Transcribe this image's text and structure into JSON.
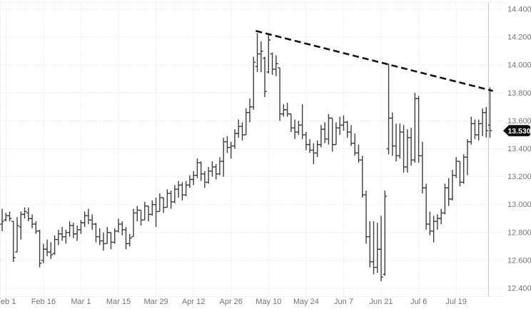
{
  "chart": {
    "last_price_label": "13.530",
    "y_axis_labels": [
      "14.400",
      "14.200",
      "14.000",
      "13.800",
      "13.600",
      "13.400",
      "13.200",
      "13.000",
      "12.800",
      "12.600",
      "12.400"
    ],
    "x_axis_labels": [
      "Feb 1",
      "Feb 16",
      "Mar 1",
      "Mar 15",
      "Mar 29",
      "Apr 12",
      "Apr 26",
      "May 10",
      "May 24",
      "Jun 7",
      "Jun 21",
      "Jul 6",
      "Jul 19"
    ]
  },
  "chart_data": {
    "type": "ohlc",
    "title": "",
    "xlabel": "",
    "ylabel": "",
    "ylim": [
      12.4,
      14.4
    ],
    "y_tick_step": 0.2,
    "grid": true,
    "legend": "none",
    "x_tick_labels": [
      "Feb 1",
      "Feb 16",
      "Mar 1",
      "Mar 15",
      "Mar 29",
      "Apr 12",
      "Apr 26",
      "May 10",
      "May 24",
      "Jun 7",
      "Jun 21",
      "Jul 6",
      "Jul 19"
    ],
    "x_tick_bar_indices": [
      1,
      11,
      21,
      31,
      41,
      51,
      61,
      71,
      81,
      91,
      101,
      111,
      121
    ],
    "last_price": 13.53,
    "bars_format": [
      "open",
      "high",
      "low",
      "close"
    ],
    "bars": [
      [
        12.86,
        12.97,
        12.81,
        12.88
      ],
      [
        12.89,
        12.94,
        12.88,
        12.92
      ],
      [
        12.92,
        12.95,
        12.88,
        12.9
      ],
      [
        12.88,
        12.88,
        12.59,
        12.62
      ],
      [
        12.66,
        12.91,
        12.66,
        12.85
      ],
      [
        12.84,
        12.95,
        12.75,
        12.93
      ],
      [
        12.93,
        12.98,
        12.9,
        12.95
      ],
      [
        12.94,
        12.98,
        12.88,
        12.9
      ],
      [
        12.9,
        12.93,
        12.83,
        12.86
      ],
      [
        12.86,
        12.88,
        12.79,
        12.81
      ],
      [
        12.81,
        12.82,
        12.55,
        12.58
      ],
      [
        12.6,
        12.72,
        12.58,
        12.68
      ],
      [
        12.68,
        12.75,
        12.63,
        12.66
      ],
      [
        12.66,
        12.73,
        12.61,
        12.64
      ],
      [
        12.65,
        12.78,
        12.64,
        12.75
      ],
      [
        12.75,
        12.82,
        12.71,
        12.79
      ],
      [
        12.79,
        12.84,
        12.74,
        12.77
      ],
      [
        12.77,
        12.82,
        12.72,
        12.8
      ],
      [
        12.8,
        12.88,
        12.77,
        12.85
      ],
      [
        12.85,
        12.87,
        12.76,
        12.79
      ],
      [
        12.79,
        12.85,
        12.74,
        12.82
      ],
      [
        12.82,
        12.89,
        12.79,
        12.87
      ],
      [
        12.87,
        12.95,
        12.84,
        12.92
      ],
      [
        12.92,
        12.97,
        12.86,
        12.89
      ],
      [
        12.89,
        12.93,
        12.82,
        12.86
      ],
      [
        12.86,
        12.87,
        12.73,
        12.77
      ],
      [
        12.77,
        12.83,
        12.71,
        12.74
      ],
      [
        12.74,
        12.8,
        12.67,
        12.72
      ],
      [
        12.72,
        12.84,
        12.72,
        12.8
      ],
      [
        12.8,
        12.8,
        12.68,
        12.73
      ],
      [
        12.73,
        12.83,
        12.72,
        12.81
      ],
      [
        12.81,
        12.9,
        12.8,
        12.86
      ],
      [
        12.86,
        12.88,
        12.78,
        12.82
      ],
      [
        12.82,
        12.84,
        12.68,
        12.72
      ],
      [
        12.72,
        12.79,
        12.7,
        12.76
      ],
      [
        12.77,
        12.97,
        12.77,
        12.94
      ],
      [
        12.94,
        12.99,
        12.88,
        12.96
      ],
      [
        12.96,
        12.96,
        12.85,
        12.89
      ],
      [
        12.89,
        13.02,
        12.89,
        12.99
      ],
      [
        12.99,
        12.99,
        12.88,
        12.93
      ],
      [
        12.93,
        13.03,
        12.92,
        13.0
      ],
      [
        13.0,
        13.05,
        12.84,
        12.95
      ],
      [
        12.95,
        13.08,
        12.95,
        13.05
      ],
      [
        13.05,
        13.05,
        12.94,
        12.98
      ],
      [
        12.98,
        13.11,
        12.98,
        13.08
      ],
      [
        13.08,
        13.1,
        12.97,
        13.02
      ],
      [
        13.02,
        13.14,
        13.01,
        13.11
      ],
      [
        13.11,
        13.17,
        13.05,
        13.14
      ],
      [
        13.14,
        13.16,
        13.03,
        13.07
      ],
      [
        13.07,
        13.17,
        13.06,
        13.14
      ],
      [
        13.14,
        13.21,
        13.12,
        13.18
      ],
      [
        13.18,
        13.24,
        13.14,
        13.21
      ],
      [
        13.21,
        13.33,
        13.19,
        13.3
      ],
      [
        13.3,
        13.31,
        13.17,
        13.22
      ],
      [
        13.22,
        13.24,
        13.12,
        13.16
      ],
      [
        13.16,
        13.27,
        13.15,
        13.24
      ],
      [
        13.24,
        13.31,
        13.2,
        13.27
      ],
      [
        13.27,
        13.29,
        13.18,
        13.22
      ],
      [
        13.22,
        13.34,
        13.21,
        13.31
      ],
      [
        13.31,
        13.48,
        13.2,
        13.45
      ],
      [
        13.45,
        13.49,
        13.37,
        13.41
      ],
      [
        13.41,
        13.45,
        13.33,
        13.42
      ],
      [
        13.42,
        13.54,
        13.4,
        13.51
      ],
      [
        13.51,
        13.61,
        13.48,
        13.56
      ],
      [
        13.56,
        13.59,
        13.46,
        13.5
      ],
      [
        13.5,
        13.69,
        13.5,
        13.66
      ],
      [
        13.66,
        13.76,
        13.59,
        13.7
      ],
      [
        13.7,
        14.06,
        13.68,
        14.02
      ],
      [
        13.99,
        14.23,
        13.95,
        14.08
      ],
      [
        14.08,
        14.17,
        13.95,
        14.1
      ],
      [
        14.05,
        14.06,
        13.77,
        13.81
      ],
      [
        13.95,
        14.22,
        13.94,
        14.18
      ],
      [
        14.08,
        14.09,
        13.93,
        13.97
      ],
      [
        13.97,
        14.07,
        13.92,
        14.01
      ],
      [
        13.98,
        13.98,
        13.6,
        13.65
      ],
      [
        13.65,
        13.72,
        13.63,
        13.68
      ],
      [
        13.68,
        13.73,
        13.63,
        13.65
      ],
      [
        13.65,
        13.65,
        13.52,
        13.55
      ],
      [
        13.55,
        13.61,
        13.47,
        13.52
      ],
      [
        13.52,
        13.6,
        13.5,
        13.57
      ],
      [
        13.57,
        13.72,
        13.47,
        13.5
      ],
      [
        13.5,
        13.52,
        13.39,
        13.43
      ],
      [
        13.43,
        13.47,
        13.37,
        13.39
      ],
      [
        13.39,
        13.44,
        13.29,
        13.37
      ],
      [
        13.37,
        13.46,
        13.34,
        13.43
      ],
      [
        13.43,
        13.57,
        13.41,
        13.54
      ],
      [
        13.54,
        13.59,
        13.44,
        13.47
      ],
      [
        13.47,
        13.65,
        13.43,
        13.62
      ],
      [
        13.62,
        13.62,
        13.38,
        13.43
      ],
      [
        13.43,
        13.59,
        13.43,
        13.55
      ],
      [
        13.55,
        13.63,
        13.5,
        13.57
      ],
      [
        13.57,
        13.64,
        13.53,
        13.59
      ],
      [
        13.59,
        13.6,
        13.48,
        13.52
      ],
      [
        13.52,
        13.57,
        13.42,
        13.44
      ],
      [
        13.44,
        13.51,
        13.35,
        13.37
      ],
      [
        13.37,
        13.43,
        13.3,
        13.32
      ],
      [
        13.32,
        13.35,
        13.05,
        13.07
      ],
      [
        13.07,
        13.1,
        12.72,
        12.77
      ],
      [
        12.77,
        12.88,
        12.55,
        12.59
      ],
      [
        12.59,
        12.88,
        12.5,
        12.55
      ],
      [
        12.55,
        12.87,
        12.51,
        12.68
      ],
      [
        12.68,
        12.92,
        12.45,
        12.48
      ],
      [
        12.5,
        13.1,
        12.49,
        13.06
      ],
      [
        13.4,
        14.01,
        13.36,
        13.62
      ],
      [
        13.62,
        13.66,
        13.35,
        13.42
      ],
      [
        13.42,
        13.58,
        13.31,
        13.35
      ],
      [
        13.35,
        13.58,
        13.33,
        13.52
      ],
      [
        13.52,
        13.57,
        13.23,
        13.27
      ],
      [
        13.27,
        13.54,
        13.23,
        13.48
      ],
      [
        13.48,
        13.55,
        13.28,
        13.32
      ],
      [
        13.32,
        13.8,
        13.3,
        13.76
      ],
      [
        13.76,
        13.78,
        13.3,
        13.35
      ],
      [
        13.35,
        13.45,
        13.08,
        13.12
      ],
      [
        13.12,
        13.15,
        12.82,
        12.86
      ],
      [
        12.86,
        12.95,
        12.78,
        12.81
      ],
      [
        12.81,
        12.92,
        12.73,
        12.88
      ],
      [
        12.88,
        12.93,
        12.82,
        12.9
      ],
      [
        12.9,
        12.97,
        12.86,
        12.94
      ],
      [
        12.94,
        13.15,
        12.93,
        13.12
      ],
      [
        13.12,
        13.19,
        12.99,
        13.04
      ],
      [
        13.04,
        13.25,
        13.03,
        13.21
      ],
      [
        13.21,
        13.34,
        13.19,
        13.31
      ],
      [
        13.31,
        13.31,
        13.13,
        13.16
      ],
      [
        13.16,
        13.36,
        13.15,
        13.34
      ],
      [
        13.34,
        13.47,
        13.21,
        13.45
      ],
      [
        13.45,
        13.63,
        13.43,
        13.58
      ],
      [
        13.58,
        13.61,
        13.47,
        13.5
      ],
      [
        13.5,
        13.61,
        13.46,
        13.58
      ],
      [
        13.58,
        13.69,
        13.49,
        13.66
      ],
      [
        13.66,
        13.7,
        13.48,
        13.53
      ],
      [
        13.57,
        13.84,
        13.48,
        13.53
      ]
    ],
    "trendline": {
      "style": "dashed",
      "from_index": 67.6,
      "from_price": 14.245,
      "to_index": 130.8,
      "to_price": 13.815
    },
    "colors": {
      "bar": "#3d3d3d",
      "trendline": "#151515",
      "grid": "#dcdcdc",
      "border": "#c8c8c8",
      "axis_text": "#757575",
      "badge_bg": "#0d0d0d",
      "badge_text": "#ffffff",
      "background": "#ffffff"
    }
  }
}
